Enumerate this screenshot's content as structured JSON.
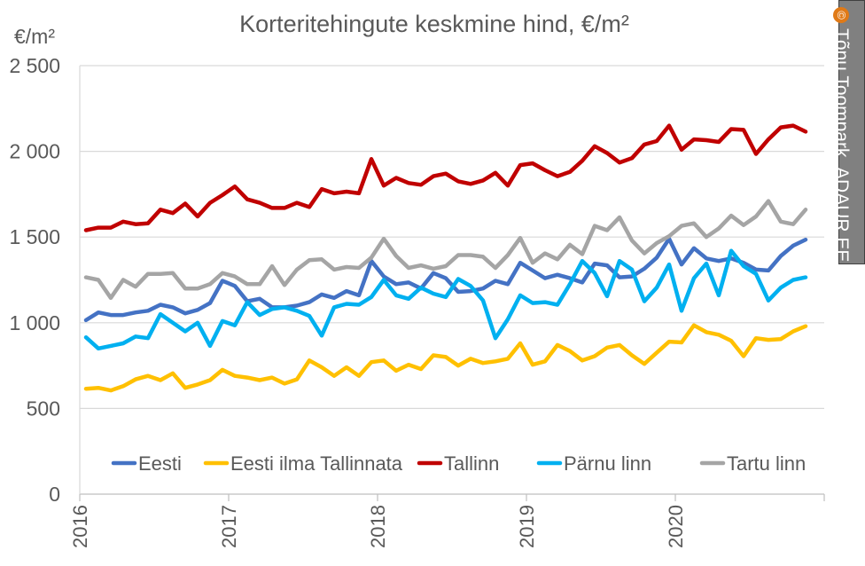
{
  "chart_data": {
    "type": "line",
    "title": "Korteritehingute keskmine hind, €/m²",
    "ylabel": "€/m²",
    "xlabel": "",
    "ylim": [
      0,
      2500
    ],
    "yticks": [
      0,
      500,
      1000,
      1500,
      2000,
      2500
    ],
    "ytick_labels": [
      "0",
      "500",
      "1 000",
      "1 500",
      "2 000",
      "2 500"
    ],
    "xlim": [
      2016.0,
      2021.0
    ],
    "xticks": [
      2016,
      2017,
      2018,
      2019,
      2020
    ],
    "xtick_labels": [
      "2016",
      "2017",
      "2018",
      "2019",
      "2020"
    ],
    "x_start": "2016-01",
    "x_step": "month",
    "grid": "horizontal",
    "legend_position": "bottom",
    "series": [
      {
        "name": "Eesti",
        "color": "#4472C4",
        "values": [
          1015,
          1060,
          1045,
          1045,
          1060,
          1070,
          1105,
          1090,
          1055,
          1075,
          1115,
          1245,
          1215,
          1125,
          1140,
          1090,
          1090,
          1100,
          1120,
          1165,
          1145,
          1185,
          1160,
          1360,
          1270,
          1225,
          1235,
          1200,
          1290,
          1260,
          1180,
          1185,
          1200,
          1245,
          1225,
          1350,
          1305,
          1260,
          1280,
          1260,
          1235,
          1345,
          1335,
          1265,
          1270,
          1315,
          1380,
          1490,
          1340,
          1435,
          1375,
          1360,
          1375,
          1350,
          1310,
          1305,
          1390,
          1450,
          1485
        ]
      },
      {
        "name": "Eesti ilma Tallinnata",
        "color": "#FFC000",
        "values": [
          615,
          620,
          605,
          630,
          670,
          690,
          665,
          705,
          620,
          640,
          665,
          725,
          690,
          680,
          665,
          680,
          645,
          670,
          780,
          740,
          690,
          740,
          690,
          770,
          780,
          720,
          755,
          730,
          810,
          800,
          750,
          790,
          765,
          775,
          790,
          880,
          755,
          775,
          870,
          835,
          780,
          805,
          855,
          870,
          810,
          760,
          825,
          890,
          885,
          985,
          945,
          930,
          895,
          805,
          910,
          900,
          905,
          950,
          980
        ]
      },
      {
        "name": "Tallinn",
        "color": "#C00000",
        "values": [
          1540,
          1555,
          1555,
          1590,
          1575,
          1580,
          1660,
          1640,
          1695,
          1620,
          1700,
          1745,
          1795,
          1720,
          1700,
          1670,
          1670,
          1700,
          1675,
          1780,
          1755,
          1765,
          1755,
          1955,
          1800,
          1845,
          1815,
          1805,
          1855,
          1870,
          1825,
          1810,
          1830,
          1875,
          1800,
          1920,
          1930,
          1890,
          1855,
          1880,
          1945,
          2030,
          1990,
          1935,
          1960,
          2040,
          2060,
          2150,
          2010,
          2070,
          2065,
          2055,
          2130,
          2125,
          1985,
          2070,
          2140,
          2150,
          2115
        ]
      },
      {
        "name": "Pärnu linn",
        "color": "#00B0F0",
        "values": [
          915,
          850,
          865,
          880,
          920,
          910,
          1050,
          1000,
          950,
          1000,
          865,
          1010,
          985,
          1120,
          1045,
          1080,
          1090,
          1070,
          1040,
          925,
          1090,
          1110,
          1105,
          1150,
          1250,
          1160,
          1140,
          1205,
          1170,
          1150,
          1255,
          1215,
          1130,
          910,
          1020,
          1160,
          1115,
          1120,
          1105,
          1225,
          1360,
          1290,
          1155,
          1360,
          1310,
          1125,
          1205,
          1340,
          1070,
          1260,
          1345,
          1160,
          1420,
          1330,
          1285,
          1130,
          1205,
          1250,
          1265
        ]
      },
      {
        "name": "Tartu linn",
        "color": "#A5A5A5",
        "values": [
          1265,
          1250,
          1145,
          1250,
          1210,
          1285,
          1285,
          1290,
          1200,
          1200,
          1225,
          1290,
          1270,
          1225,
          1225,
          1330,
          1220,
          1310,
          1365,
          1370,
          1310,
          1325,
          1320,
          1380,
          1490,
          1390,
          1320,
          1335,
          1315,
          1330,
          1395,
          1395,
          1385,
          1320,
          1395,
          1495,
          1350,
          1405,
          1370,
          1455,
          1400,
          1565,
          1540,
          1615,
          1480,
          1405,
          1465,
          1505,
          1565,
          1580,
          1500,
          1550,
          1625,
          1570,
          1620,
          1710,
          1590,
          1575,
          1660
        ]
      }
    ]
  },
  "credit": {
    "symbol": "©",
    "text": "Tõnu Toompark, ADAUR.EE"
  }
}
